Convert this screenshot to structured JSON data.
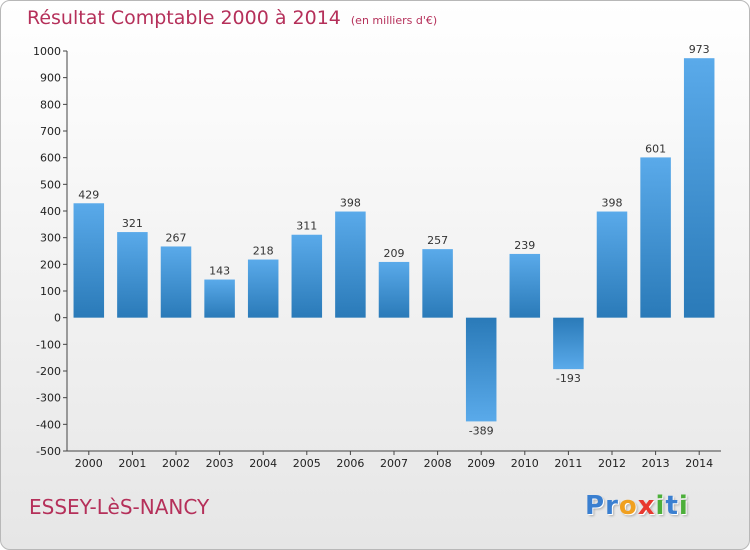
{
  "header": {
    "title": "Résultat Comptable 2000 à 2014",
    "subtitle": "(en milliers d'€)"
  },
  "footer": {
    "commune": "ESSEY-LèS-NANCY",
    "logo_letters": [
      {
        "ch": "P",
        "color": "#3a7fd0"
      },
      {
        "ch": "r",
        "color": "#3a7fd0"
      },
      {
        "ch": "o",
        "color": "#f0a020"
      },
      {
        "ch": "x",
        "color": "#e8382f"
      },
      {
        "ch": "i",
        "color": "#4caf3a"
      },
      {
        "ch": "t",
        "color": "#3a7fd0"
      },
      {
        "ch": "i",
        "color": "#4caf3a"
      }
    ]
  },
  "chart_data": {
    "type": "bar",
    "title": "Résultat Comptable 2000 à 2014",
    "subtitle": "(en milliers d'€)",
    "categories": [
      "2000",
      "2001",
      "2002",
      "2003",
      "2004",
      "2005",
      "2006",
      "2007",
      "2008",
      "2009",
      "2010",
      "2011",
      "2012",
      "2013",
      "2014"
    ],
    "values": [
      429,
      321,
      267,
      143,
      218,
      311,
      398,
      209,
      257,
      -389,
      239,
      -193,
      398,
      601,
      973
    ],
    "ylim": [
      -500,
      1000
    ],
    "yticks": [
      1000,
      900,
      800,
      700,
      600,
      500,
      400,
      300,
      200,
      100,
      0,
      -100,
      -200,
      -300,
      -400,
      -500
    ],
    "grid": false,
    "legend": "none",
    "colors": {
      "bar_light": "#5aaaea",
      "bar_dark": "#2a7ab8",
      "axis": "#444444"
    }
  }
}
